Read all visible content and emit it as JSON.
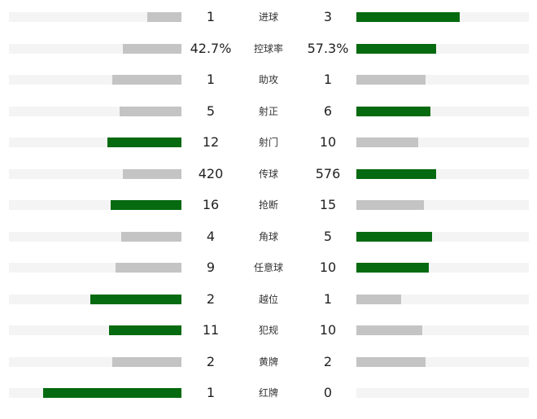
{
  "colors": {
    "leader": "#066a10",
    "other": "#c4c4c4",
    "track": "#f4f4f4"
  },
  "stats": [
    {
      "label": "进球",
      "home": "1",
      "away": "3",
      "home_bar": 0.2,
      "away_bar": 0.6,
      "leader": "away"
    },
    {
      "label": "控球率",
      "home": "42.7%",
      "away": "57.3%",
      "home_bar": 0.34,
      "away_bar": 0.46,
      "leader": "away"
    },
    {
      "label": "助攻",
      "home": "1",
      "away": "1",
      "home_bar": 0.4,
      "away_bar": 0.4,
      "leader": "none"
    },
    {
      "label": "射正",
      "home": "5",
      "away": "6",
      "home_bar": 0.36,
      "away_bar": 0.43,
      "leader": "away"
    },
    {
      "label": "射门",
      "home": "12",
      "away": "10",
      "home_bar": 0.43,
      "away_bar": 0.36,
      "leader": "home"
    },
    {
      "label": "传球",
      "home": "420",
      "away": "576",
      "home_bar": 0.34,
      "away_bar": 0.46,
      "leader": "away"
    },
    {
      "label": "抢断",
      "home": "16",
      "away": "15",
      "home_bar": 0.41,
      "away_bar": 0.39,
      "leader": "home"
    },
    {
      "label": "角球",
      "home": "4",
      "away": "5",
      "home_bar": 0.35,
      "away_bar": 0.44,
      "leader": "away"
    },
    {
      "label": "任意球",
      "home": "9",
      "away": "10",
      "home_bar": 0.38,
      "away_bar": 0.42,
      "leader": "away"
    },
    {
      "label": "越位",
      "home": "2",
      "away": "1",
      "home_bar": 0.53,
      "away_bar": 0.26,
      "leader": "home"
    },
    {
      "label": "犯规",
      "home": "11",
      "away": "10",
      "home_bar": 0.42,
      "away_bar": 0.38,
      "leader": "home"
    },
    {
      "label": "黄牌",
      "home": "2",
      "away": "2",
      "home_bar": 0.4,
      "away_bar": 0.4,
      "leader": "none"
    },
    {
      "label": "红牌",
      "home": "1",
      "away": "0",
      "home_bar": 0.8,
      "away_bar": 0,
      "leader": "home"
    }
  ]
}
